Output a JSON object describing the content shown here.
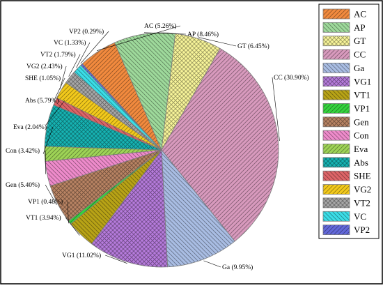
{
  "chart_data": {
    "type": "pie",
    "slices": [
      {
        "name": "CC",
        "label": "CC (30.90%)",
        "value": 30.9,
        "color": "#D89ABD",
        "pattern": "hatch-ne"
      },
      {
        "name": "Ga",
        "label": "Ga (9.95%)",
        "value": 9.95,
        "color": "#A9BDE3",
        "pattern": "hatch-nw"
      },
      {
        "name": "VG1",
        "label": "VG1 (11.02%)",
        "value": 11.02,
        "color": "#B67BDC",
        "pattern": "cross"
      },
      {
        "name": "VT1",
        "label": "VT1 (3.94%)",
        "value": 3.94,
        "color": "#B8A316",
        "pattern": "hatch-nw"
      },
      {
        "name": "VP1",
        "label": "VP1 (0.48%)",
        "value": 0.48,
        "color": "#36D33E",
        "pattern": "hatch-ne"
      },
      {
        "name": "Gen",
        "label": "Gen (5.40%)",
        "value": 5.4,
        "color": "#B98464",
        "pattern": "cross"
      },
      {
        "name": "Con",
        "label": "Con (3.42%)",
        "value": 3.42,
        "color": "#EE8BCB",
        "pattern": "hatch-nw"
      },
      {
        "name": "Eva",
        "label": "Eva (2.04%)",
        "value": 2.04,
        "color": "#9ED356",
        "pattern": "hatch-ne"
      },
      {
        "name": "Abs",
        "label": "Abs (5.79%)",
        "value": 5.79,
        "color": "#16B3B3",
        "pattern": "cross"
      },
      {
        "name": "SHE",
        "label": "SHE (1.05%)",
        "value": 1.05,
        "color": "#DD6467",
        "pattern": "hatch-nw"
      },
      {
        "name": "VG2",
        "label": "VG2 (2.43%)",
        "value": 2.43,
        "color": "#F2C91C",
        "pattern": "hatch-ne"
      },
      {
        "name": "VT2",
        "label": "VT2 (1.79%)",
        "value": 1.79,
        "color": "#A8A8A8",
        "pattern": "cross"
      },
      {
        "name": "VC",
        "label": "VC (1.33%)",
        "value": 1.33,
        "color": "#3BDDE7",
        "pattern": "hatch-nw"
      },
      {
        "name": "VP2",
        "label": "VP2 (0.29%)",
        "value": 0.29,
        "color": "#6268DA",
        "pattern": "hatch-ne"
      },
      {
        "name": "AC",
        "label": "AC (5.26%)",
        "value": 5.26,
        "color": "#F28A3E",
        "pattern": "hatch-ne"
      },
      {
        "name": "AP",
        "label": "AP (8.46%)",
        "value": 8.46,
        "color": "#9ED99B",
        "pattern": "hatch-nw"
      },
      {
        "name": "GT",
        "label": "GT (6.45%)",
        "value": 6.45,
        "color": "#F8F59A",
        "pattern": "cross"
      }
    ],
    "legend": {
      "placement": "right",
      "entries": [
        "AC",
        "AP",
        "GT",
        "CC",
        "Ga",
        "VG1",
        "VT1",
        "VP1",
        "Gen",
        "Con",
        "Eva",
        "Abs",
        "SHE",
        "VG2",
        "VT2",
        "VC",
        "VP2"
      ]
    }
  }
}
